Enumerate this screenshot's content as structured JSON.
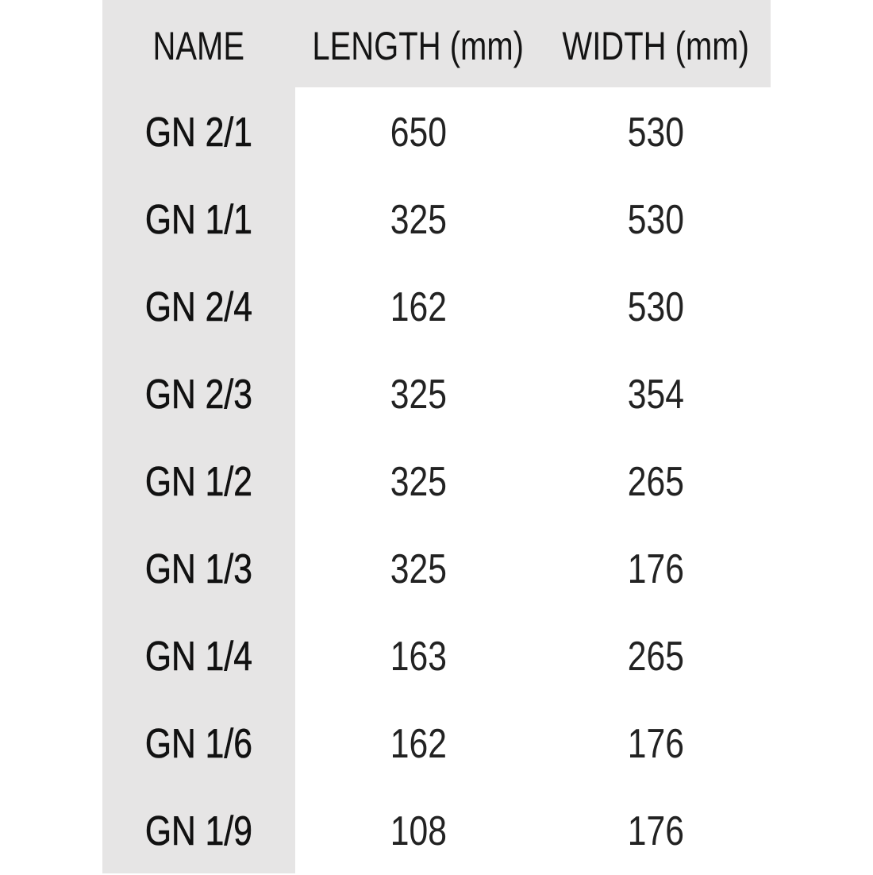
{
  "colors": {
    "header_background": "#e6e5e5",
    "body_background": "#ffffff",
    "text": "#141414"
  },
  "table": {
    "headers": [
      "NAME",
      "LENGTH (mm)",
      "WIDTH (mm)"
    ],
    "rows": [
      [
        "GN 2/1",
        "650",
        "530"
      ],
      [
        "GN 1/1",
        "325",
        "530"
      ],
      [
        "GN 2/4",
        "162",
        "530"
      ],
      [
        "GN 2/3",
        "325",
        "354"
      ],
      [
        "GN 1/2",
        "325",
        "265"
      ],
      [
        "GN 1/3",
        "325",
        "176"
      ],
      [
        "GN 1/4",
        "163",
        "265"
      ],
      [
        "GN 1/6",
        "162",
        "176"
      ],
      [
        "GN 1/9",
        "108",
        "176"
      ]
    ]
  }
}
